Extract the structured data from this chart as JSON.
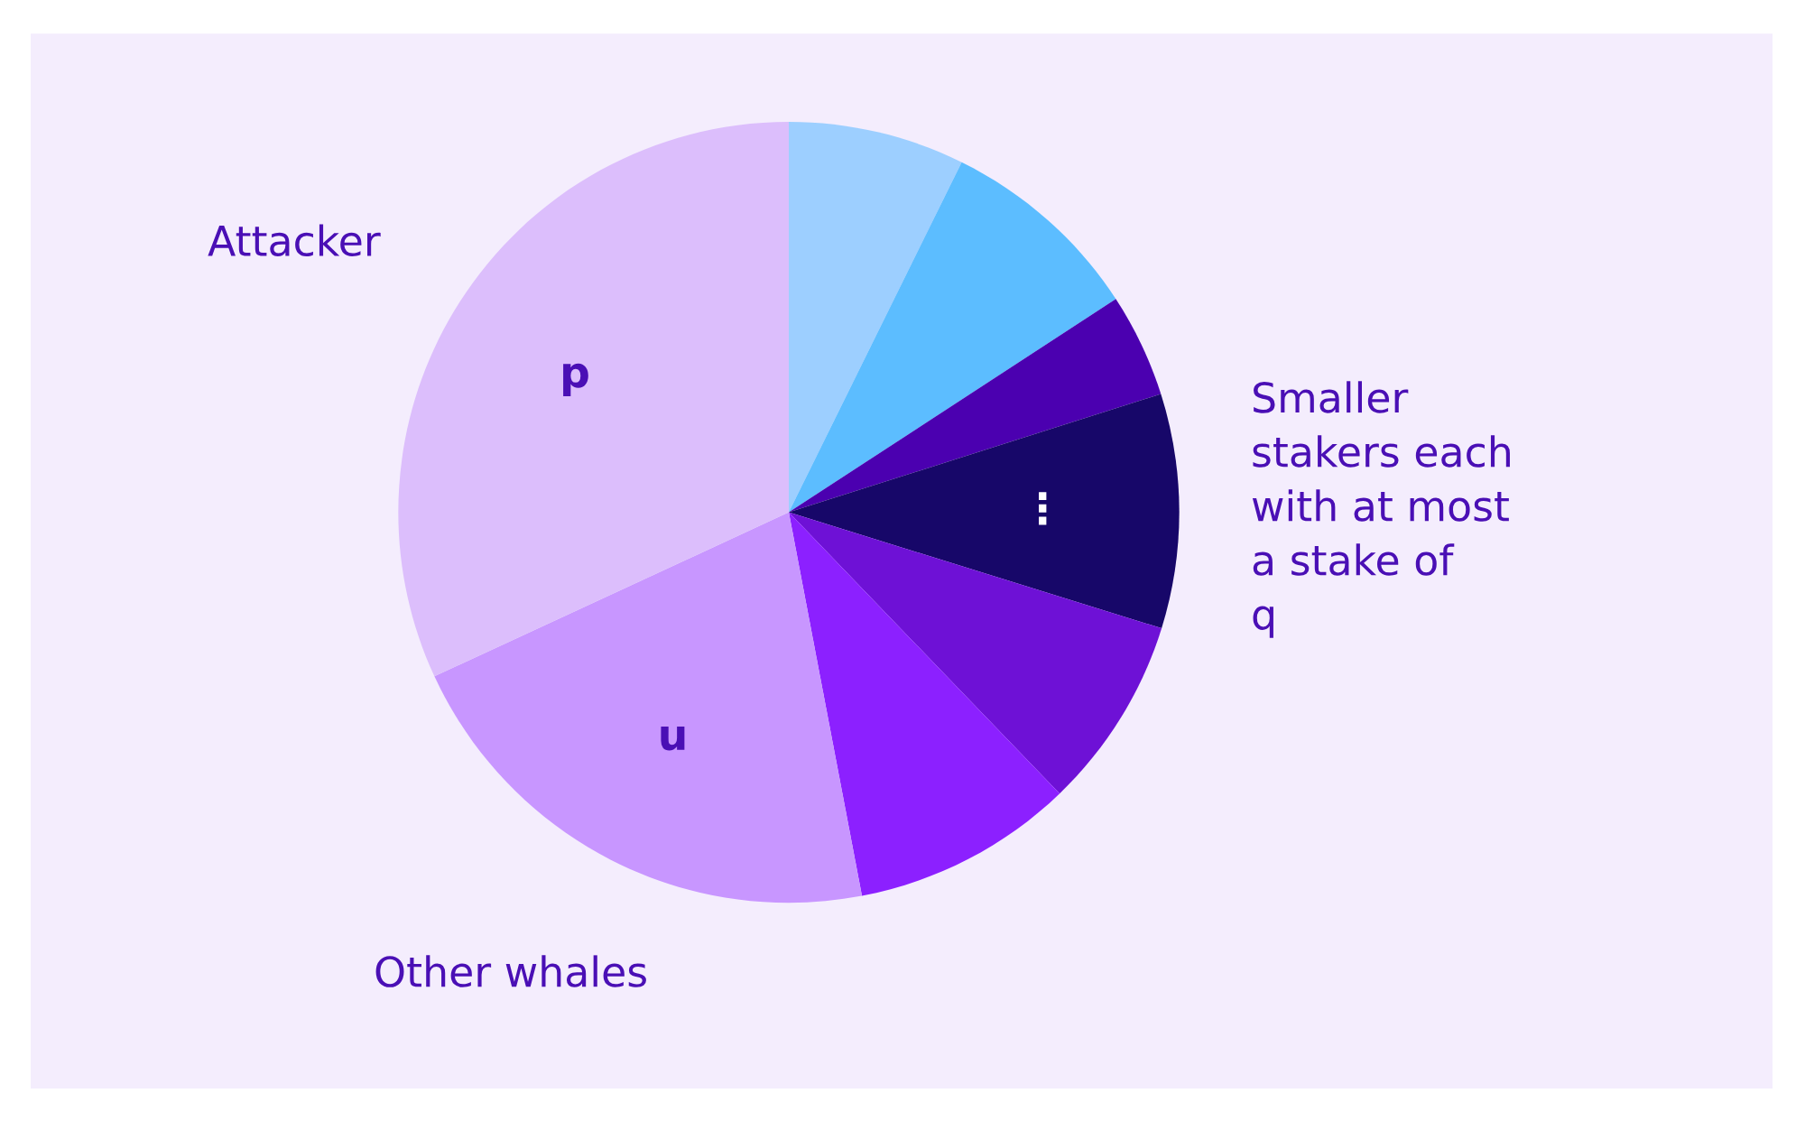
{
  "chart_data": {
    "type": "pie",
    "categories": [
      null,
      null,
      null,
      "⋮",
      null,
      null,
      "u",
      "p"
    ],
    "values": [
      7.3,
      8.5,
      4.3,
      9.7,
      8.0,
      9.2,
      21.1,
      31.9
    ],
    "colors": [
      "#9dcfff",
      "#5cbdff",
      "#4b00b0",
      "#170769",
      "#6e11d6",
      "#8c20ff",
      "#c896ff",
      "#dcbefc"
    ],
    "annotations": [
      "Attacker",
      "Other whales",
      "Smaller\nstakers each\nwith at most\na stake of\nq"
    ]
  }
}
